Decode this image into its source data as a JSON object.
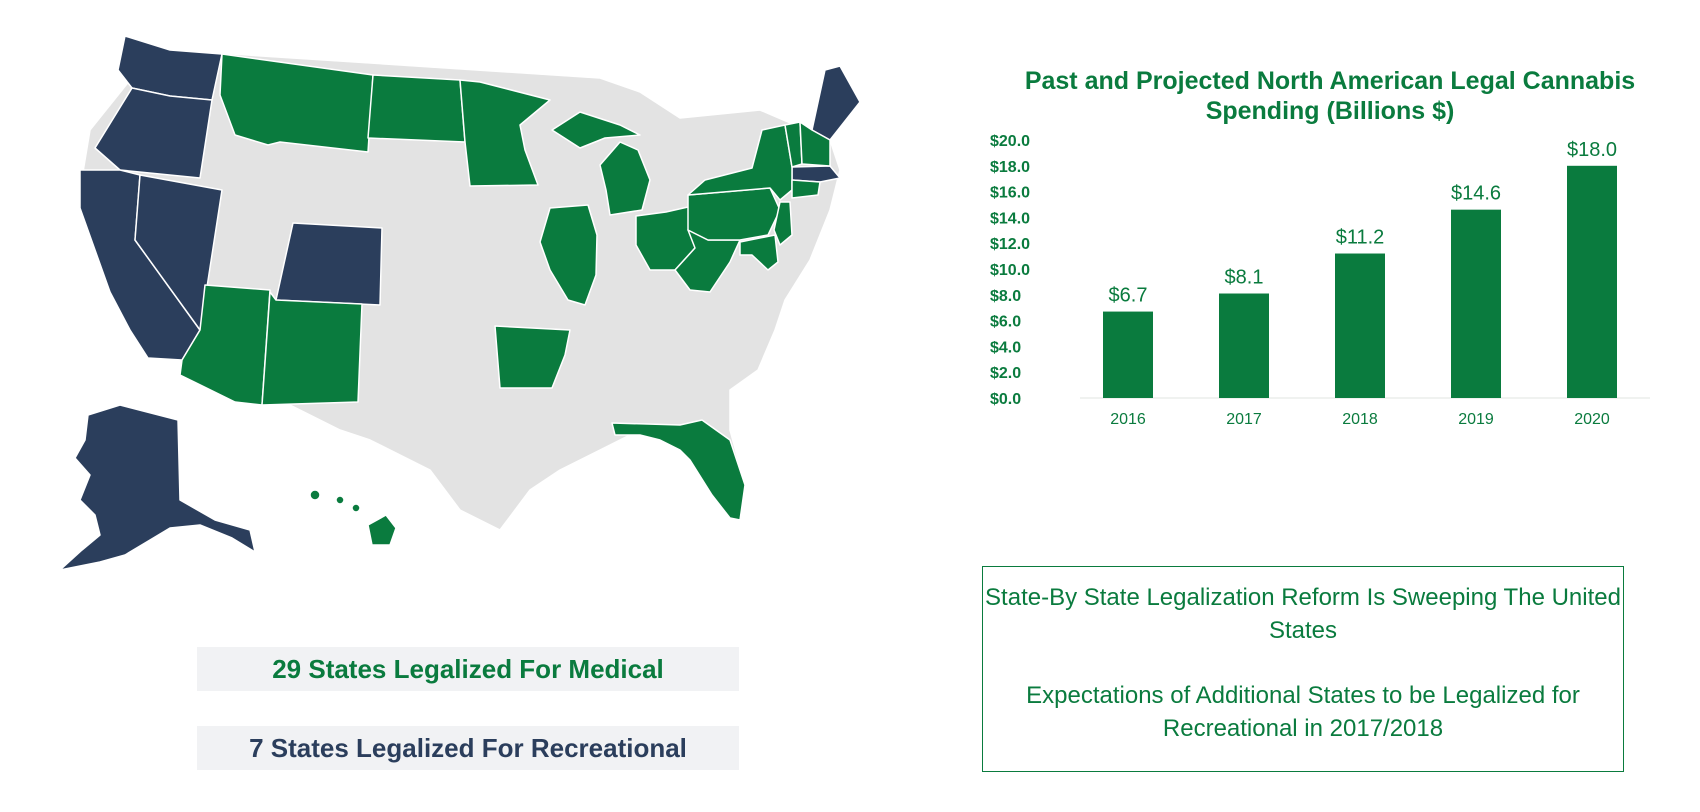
{
  "colors": {
    "medical": "#0a7b3e",
    "recreational": "#2b3e5c",
    "none": "#e3e3e3",
    "border": "#ffffff"
  },
  "legend": {
    "medical": "29 States Legalized For Medical",
    "recreational": "7 States Legalized For Recreational"
  },
  "info_box": {
    "line1": "State-By State Legalization Reform Is Sweeping The United States",
    "line2": "Expectations of Additional States to be Legalized for Recreational in 2017/2018"
  },
  "chart_data": {
    "type": "bar",
    "title": "Past and Projected North American Legal Cannabis Spending (Billions $)",
    "categories": [
      "2016",
      "2017",
      "2018",
      "2019",
      "2020"
    ],
    "values": [
      6.7,
      8.1,
      11.2,
      14.6,
      18.0
    ],
    "data_labels": [
      "$6.7",
      "$8.1",
      "$11.2",
      "$14.6",
      "$18.0"
    ],
    "yticks": [
      "$0.0",
      "$2.0",
      "$4.0",
      "$6.0",
      "$8.0",
      "$10.0",
      "$12.0",
      "$14.0",
      "$16.0",
      "$18.0",
      "$20.0"
    ],
    "ylim": [
      0,
      20
    ],
    "xlabel": "",
    "ylabel": "",
    "grid": false,
    "color": "#0a7b3e"
  }
}
